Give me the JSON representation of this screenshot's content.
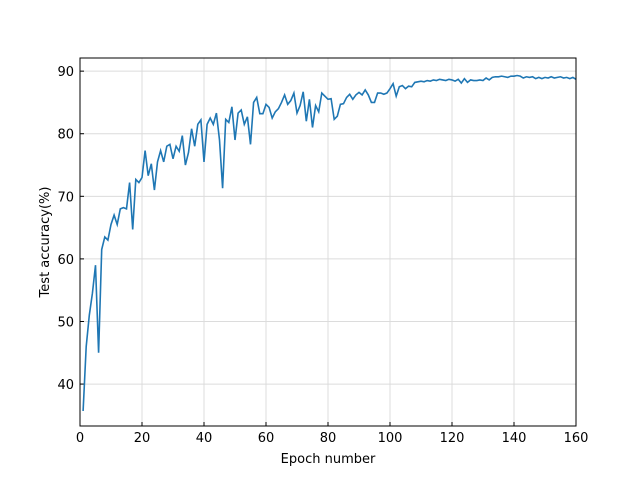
{
  "chart_data": {
    "type": "line",
    "xlabel": "Epoch number",
    "ylabel": "Test accuracy(%)",
    "xlim": [
      0,
      160
    ],
    "ylim": [
      33.3,
      92.1
    ],
    "xticks": [
      0,
      20,
      40,
      60,
      80,
      100,
      120,
      140,
      160
    ],
    "yticks": [
      40,
      50,
      60,
      70,
      80,
      90
    ],
    "grid": true,
    "x": [
      1,
      2,
      3,
      4,
      5,
      6,
      7,
      8,
      9,
      10,
      11,
      12,
      13,
      14,
      15,
      16,
      17,
      18,
      19,
      20,
      21,
      22,
      23,
      24,
      25,
      26,
      27,
      28,
      29,
      30,
      31,
      32,
      33,
      34,
      35,
      36,
      37,
      38,
      39,
      40,
      41,
      42,
      43,
      44,
      45,
      46,
      47,
      48,
      49,
      50,
      51,
      52,
      53,
      54,
      55,
      56,
      57,
      58,
      59,
      60,
      61,
      62,
      63,
      64,
      65,
      66,
      67,
      68,
      69,
      70,
      71,
      72,
      73,
      74,
      75,
      76,
      77,
      78,
      79,
      80,
      81,
      82,
      83,
      84,
      85,
      86,
      87,
      88,
      89,
      90,
      91,
      92,
      93,
      94,
      95,
      96,
      97,
      98,
      99,
      100,
      101,
      102,
      103,
      104,
      105,
      106,
      107,
      108,
      109,
      110,
      111,
      112,
      113,
      114,
      115,
      116,
      117,
      118,
      119,
      120,
      121,
      122,
      123,
      124,
      125,
      126,
      127,
      128,
      129,
      130,
      131,
      132,
      133,
      134,
      135,
      136,
      137,
      138,
      139,
      140,
      141,
      142,
      143,
      144,
      145,
      146,
      147,
      148,
      149,
      150,
      151,
      152,
      153,
      154,
      155,
      156,
      157,
      158,
      159,
      160
    ],
    "series": [
      {
        "color": "#1f77b4",
        "values": [
          35.7,
          46,
          51,
          54.5,
          59,
          45,
          61.5,
          63.5,
          63,
          65.5,
          67,
          65.5,
          68,
          68.2,
          68,
          72.2,
          64.7,
          72.7,
          72.2,
          73,
          77.3,
          73.3,
          75.2,
          71,
          75.5,
          77.3,
          75.5,
          78,
          78.3,
          76,
          78,
          77.2,
          79.7,
          75,
          77,
          80.8,
          78,
          81.5,
          82.2,
          75.5,
          81.5,
          82.5,
          81.5,
          83.3,
          79,
          71.3,
          82.3,
          81.8,
          84.3,
          79,
          83.3,
          83.8,
          81.5,
          82.7,
          78.3,
          85,
          85.8,
          83.2,
          83.2,
          84.7,
          84.2,
          82.5,
          83.5,
          84,
          85,
          86.2,
          84.7,
          85.3,
          86.5,
          83.3,
          84.5,
          86.7,
          82,
          85.5,
          81,
          84.5,
          83.5,
          86.5,
          86,
          85.5,
          85.6,
          82.3,
          82.8,
          84.7,
          84.8,
          85.8,
          86.3,
          85.5,
          86.2,
          86.6,
          86.2,
          87,
          86.2,
          85,
          85,
          86.5,
          86.5,
          86.3,
          86.5,
          87.2,
          88,
          86,
          87.5,
          87.7,
          87.2,
          87.6,
          87.5,
          88.2,
          88.3,
          88.4,
          88.3,
          88.5,
          88.4,
          88.6,
          88.5,
          88.7,
          88.6,
          88.5,
          88.7,
          88.6,
          88.4,
          88.7,
          88.1,
          88.8,
          88.2,
          88.6,
          88.5,
          88.5,
          88.6,
          88.5,
          88.9,
          88.6,
          89,
          89.1,
          89.1,
          89.2,
          89.1,
          89,
          89.2,
          89.2,
          89.3,
          89.2,
          88.9,
          89.1,
          89,
          89.1,
          88.8,
          89,
          88.8,
          89,
          88.9,
          89.1,
          88.9,
          89,
          89.1,
          88.9,
          89,
          88.8,
          89,
          88.7
        ]
      }
    ]
  }
}
